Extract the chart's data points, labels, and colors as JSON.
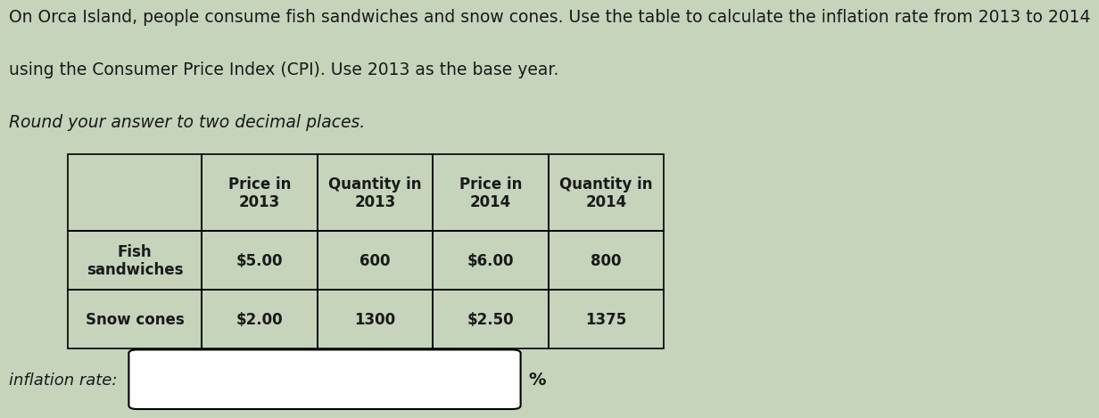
{
  "title_line1": "On Orca Island, people consume fish sandwiches and snow cones. Use the table to calculate the inflation rate from 2013 to 2014",
  "title_line2": "using the Consumer Price Index (CPI). Use 2013 as the base year.",
  "subtitle": "Round your answer to two decimal places.",
  "background_color": "#c5d4bb",
  "text_color": "#1a1a1a",
  "col_headers": [
    "Price in\n2013",
    "Quantity in\n2013",
    "Price in\n2014",
    "Quantity in\n2014"
  ],
  "row_labels": [
    "Fish\nsandwiches",
    "Snow cones"
  ],
  "row_data": [
    [
      "$5.00",
      "600",
      "$6.00",
      "800"
    ],
    [
      "$2.00",
      "1300",
      "$2.50",
      "1375"
    ]
  ],
  "input_label": "inflation rate:",
  "input_suffix": "%"
}
